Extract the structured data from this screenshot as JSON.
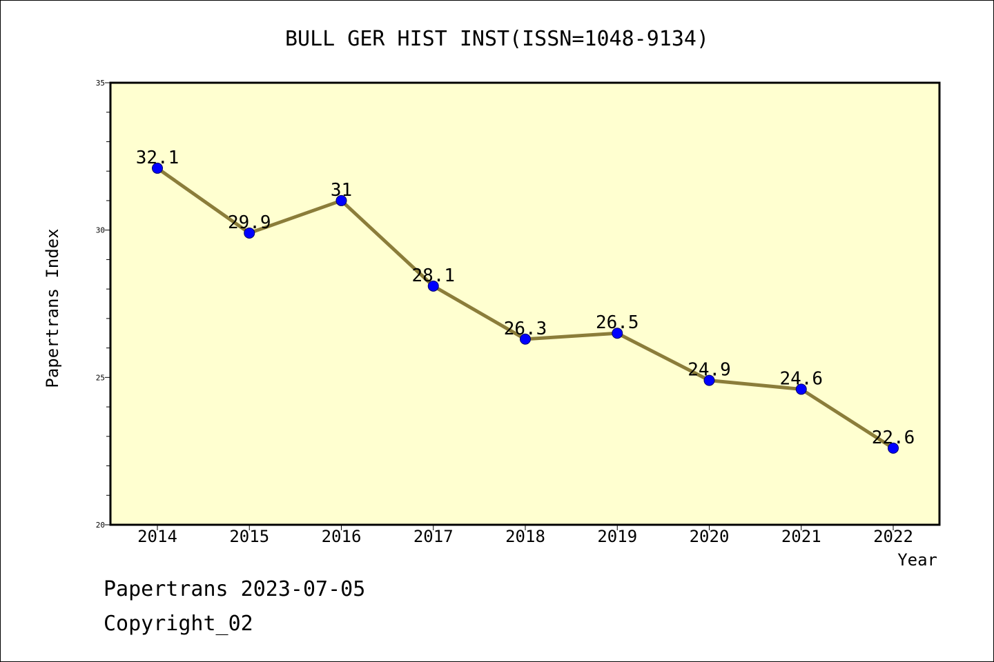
{
  "chart_data": {
    "type": "line",
    "title": "BULL GER HIST INST(ISSN=1048-9134)",
    "xlabel": "Year",
    "ylabel": "Papertrans Index",
    "categories": [
      "2014",
      "2015",
      "2016",
      "2017",
      "2018",
      "2019",
      "2020",
      "2021",
      "2022"
    ],
    "series": [
      {
        "values": [
          32.1,
          29.9,
          31,
          28.1,
          26.3,
          26.5,
          24.9,
          24.6,
          22.6
        ],
        "data_labels": [
          "32.1",
          "29.9",
          "31",
          "28.1",
          "26.3",
          "26.5",
          "24.9",
          "24.6",
          "22.6"
        ]
      }
    ],
    "ylim": [
      20,
      35
    ],
    "yticks": [
      "20",
      "25",
      "30",
      "35"
    ],
    "grid": false,
    "plot_background": "#ffffd0",
    "line_color": "#8b7d3a",
    "marker_color": "#0000ff"
  },
  "footer": {
    "line1": "Papertrans 2023-07-05",
    "line2": "Copyright_02"
  }
}
